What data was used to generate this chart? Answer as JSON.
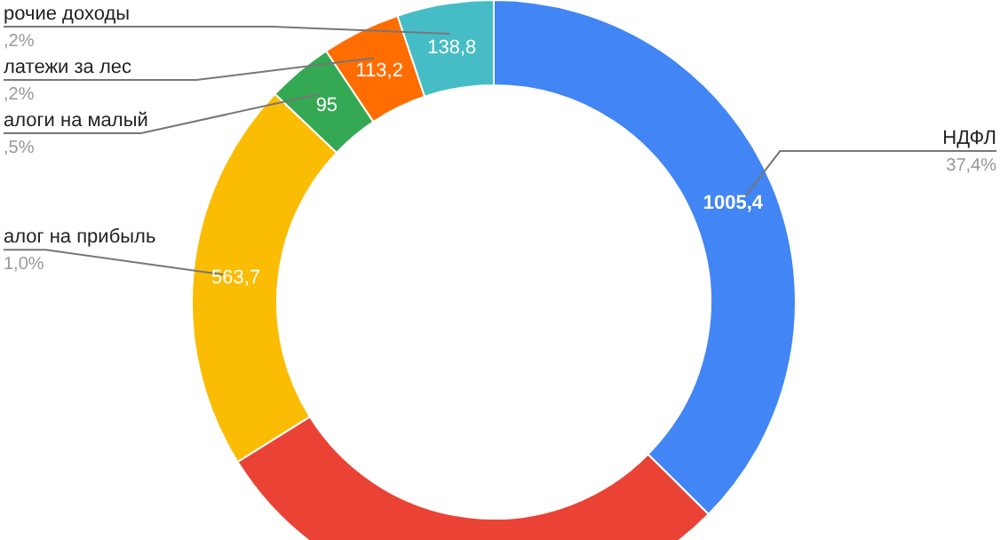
{
  "chart_data": {
    "type": "donut",
    "categories": [
      "НДФЛ",
      null,
      "алог на прибыль",
      "алоги на малый",
      "латежи за лес",
      "рочие доходы"
    ],
    "values": [
      1005.4,
      772,
      563.7,
      95,
      113.2,
      138.8
    ],
    "value_labels": [
      "1005,4",
      null,
      "563,7",
      "95",
      "113,2",
      "138,8"
    ],
    "colors": [
      "#4285f4",
      "#ea4335",
      "#fbbc04",
      "#34a853",
      "#ff6d01",
      "#46bdc6"
    ],
    "annotations": [
      "37,4%",
      "1,0%",
      ",5%",
      ",2%",
      ",2%"
    ],
    "legend": false
  }
}
